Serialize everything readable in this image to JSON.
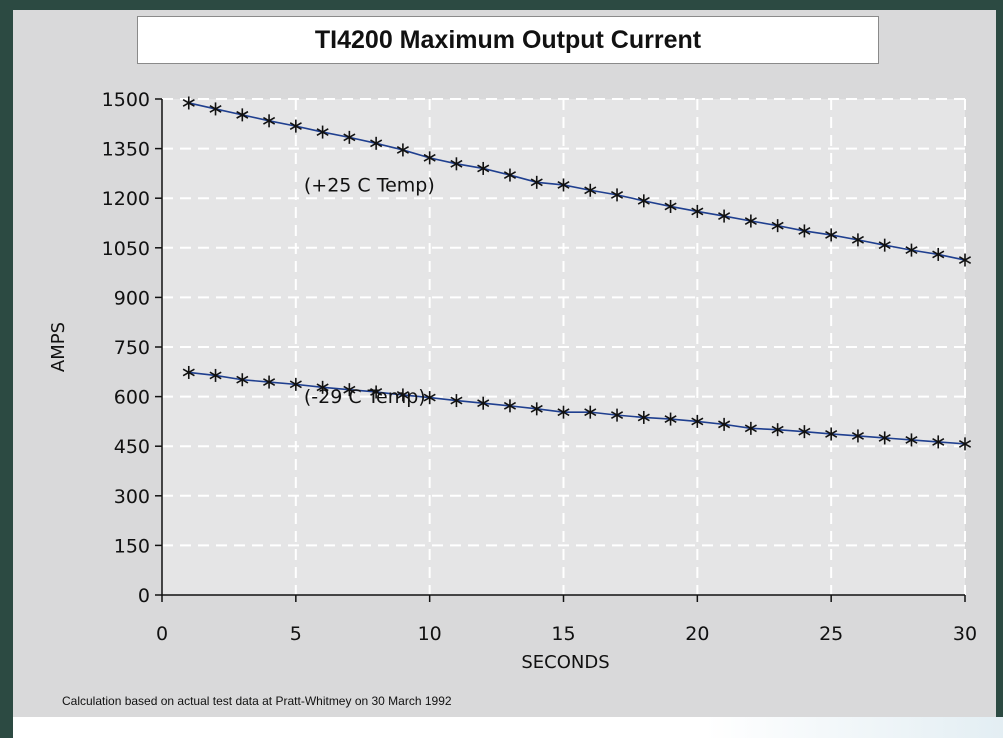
{
  "colors": {
    "frame": "#2c4a42",
    "panel": "#d9d9da",
    "plot_background": "#e5e5e6",
    "gridline": "#ffffff",
    "series_line": "#1f3f8f",
    "marker": "#111111"
  },
  "title": "TI4200 Maximum Output Current",
  "footnote": "Calculation based on actual test data at Pratt-Whitmey on 30 March 1992",
  "chart_data": {
    "type": "line",
    "title": "TI4200 Maximum Output Current",
    "xlabel": "SECONDS",
    "ylabel": "AMPS",
    "xlim": [
      0,
      30
    ],
    "ylim": [
      0,
      1500
    ],
    "x_ticks": [
      "0",
      "5",
      "10",
      "15",
      "20",
      "25",
      "30"
    ],
    "y_ticks": [
      "0",
      "150",
      "300",
      "450",
      "600",
      "750",
      "900",
      "1050",
      "1200",
      "1350",
      "1500"
    ],
    "grid": true,
    "marker": "asterisk",
    "annotations": [
      {
        "text": "(+25 C Temp)",
        "x": 5.3,
        "y": 1220
      },
      {
        "text": "(-29 C Temp)",
        "x": 5.3,
        "y": 580
      }
    ],
    "x": [
      1,
      2,
      3,
      4,
      5,
      6,
      7,
      8,
      9,
      10,
      11,
      12,
      13,
      14,
      15,
      16,
      17,
      18,
      19,
      20,
      21,
      22,
      23,
      24,
      25,
      26,
      27,
      28,
      29,
      30
    ],
    "series": [
      {
        "values": [
          1488,
          1470,
          1452,
          1434,
          1418,
          1400,
          1384,
          1366,
          1346,
          1322,
          1304,
          1290,
          1270,
          1248,
          1240,
          1224,
          1210,
          1192,
          1175,
          1160,
          1146,
          1131,
          1117,
          1101,
          1089,
          1074,
          1058,
          1043,
          1030,
          1013
        ]
      },
      {
        "values": [
          673,
          664,
          651,
          644,
          637,
          628,
          621,
          614,
          605,
          597,
          588,
          580,
          572,
          563,
          553,
          553,
          544,
          537,
          532,
          525,
          516,
          504,
          500,
          494,
          487,
          481,
          475,
          469,
          463,
          457
        ]
      }
    ]
  }
}
